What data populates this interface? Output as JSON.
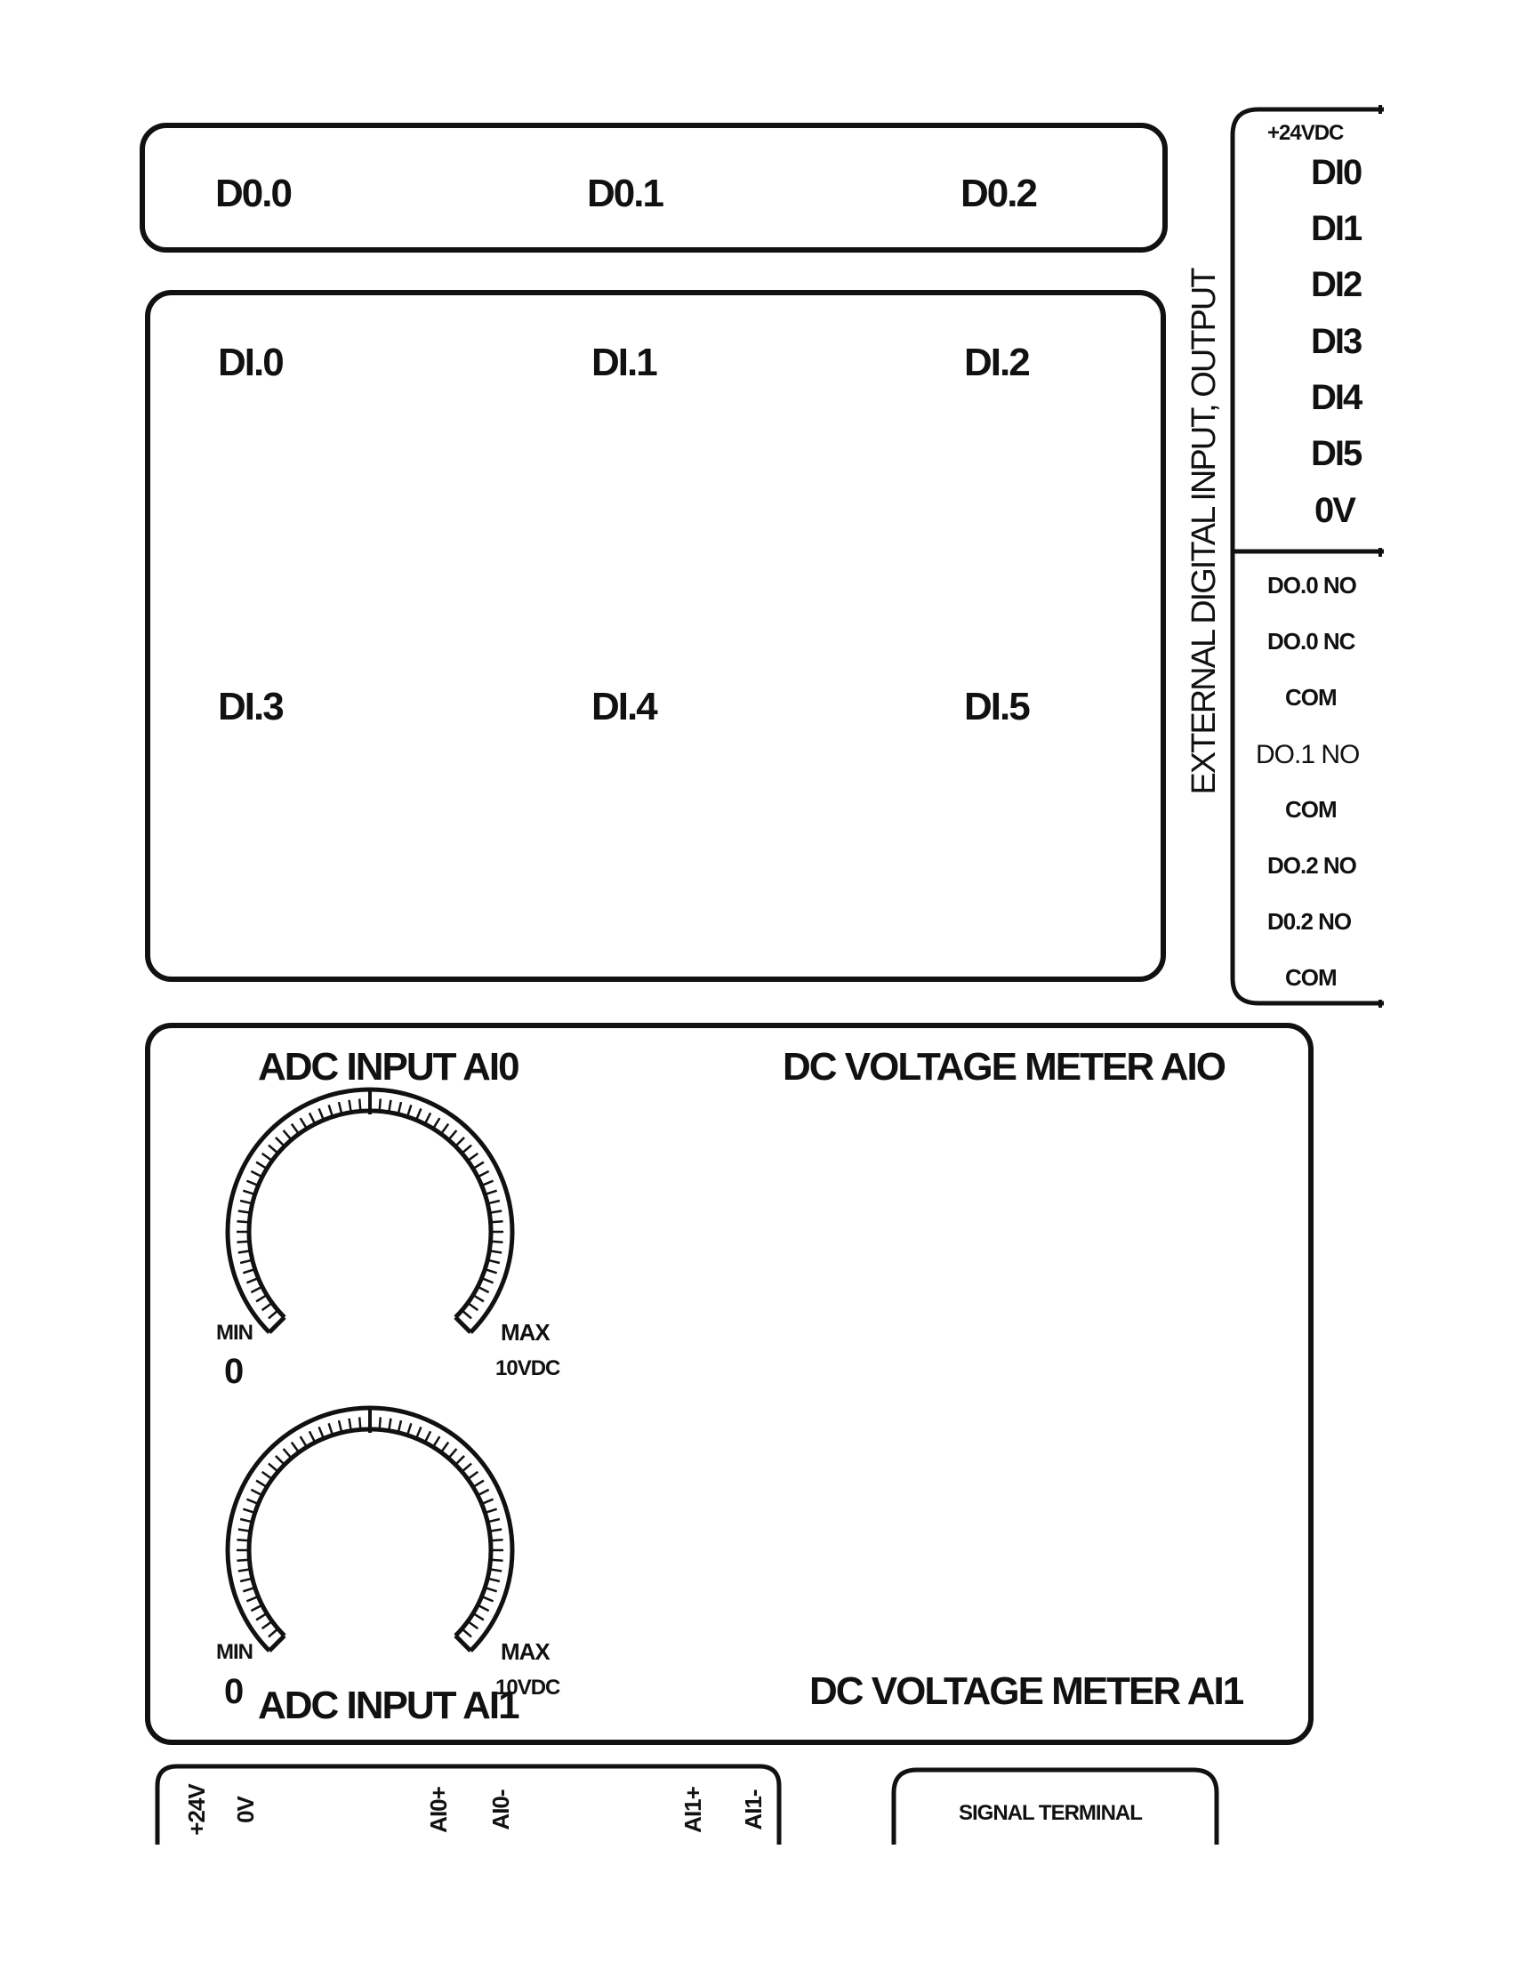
{
  "outputs": {
    "labels": [
      "D0.0",
      "D0.1",
      "D0.2"
    ]
  },
  "inputs": {
    "labels": [
      "DI.0",
      "DI.1",
      "DI.2",
      "DI.3",
      "DI.4",
      "DI.5"
    ]
  },
  "side_panel": {
    "title": "EXTERNAL DIGITAL INPUT, OUTPUT",
    "supply": "+24VDC",
    "input_terminals": [
      "DI0",
      "DI1",
      "DI2",
      "DI3",
      "DI4",
      "DI5",
      "0V"
    ],
    "output_terminals": [
      "DO.0 NO",
      "DO.0 NC",
      "COM",
      "DO.1 NO",
      "COM",
      "DO.2 NO",
      "D0.2 NO",
      "COM"
    ]
  },
  "analog": {
    "adc0_title": "ADC INPUT AI0",
    "adc1_title": "ADC INPUT AI1",
    "meter0_title": "DC VOLTAGE METER AIO",
    "meter1_title": "DC VOLTAGE METER AI1",
    "dial0": {
      "min_label": "MIN",
      "min_value": "0",
      "max_label": "MAX",
      "max_value": "10VDC"
    },
    "dial1": {
      "min_label": "MIN",
      "min_value": "0",
      "max_label": "MAX",
      "max_value": "10VDC"
    }
  },
  "bottom_terminals": [
    "+24V",
    "0V",
    "AI0+",
    "AI0-",
    "AI1+",
    "AI1-"
  ],
  "signal_terminal": "SIGNAL TERMINAL"
}
